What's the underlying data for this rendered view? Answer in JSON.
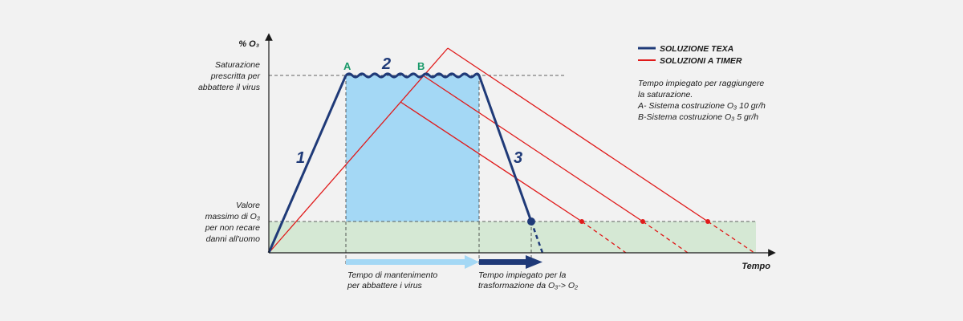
{
  "colors": {
    "background": "#f2f2f2",
    "texa": "#1f3a78",
    "timer": "#e01a1a",
    "maintenance_fill": "#a4d8f5",
    "safe_zone_fill": "#d5e8d4",
    "point_label": "#1a9a6a",
    "arrow_light": "#a4d8f5",
    "arrow_dark": "#1f3a78"
  },
  "axes": {
    "y_label": "% O₃",
    "x_label": "Tempo"
  },
  "levels": {
    "saturation_label": [
      "Saturazione",
      "prescritta per",
      "abbattere il virus"
    ],
    "safe_label": [
      "Valore",
      "massimo di O₃",
      "per non recare",
      "danni all'uomo"
    ]
  },
  "points": {
    "a": "A",
    "b": "B"
  },
  "phases": {
    "one": "1",
    "two": "2",
    "three": "3"
  },
  "legend": {
    "texa": "SOLUZIONE TEXA",
    "timer": "SOLUZIONI A TIMER"
  },
  "note": [
    "Tempo impiegato per raggiungere",
    "la saturazione.",
    "A- Sistema costruzione O₃ 10 gr/h",
    "B-Sistema costruzione O₃ 5 gr/h"
  ],
  "captions": {
    "maintenance": [
      "Tempo di mantenimento",
      "per abbattere i virus"
    ],
    "transformation": [
      "Tempo impiegato per la",
      "trasformazione da O₃-> O₂"
    ]
  }
}
